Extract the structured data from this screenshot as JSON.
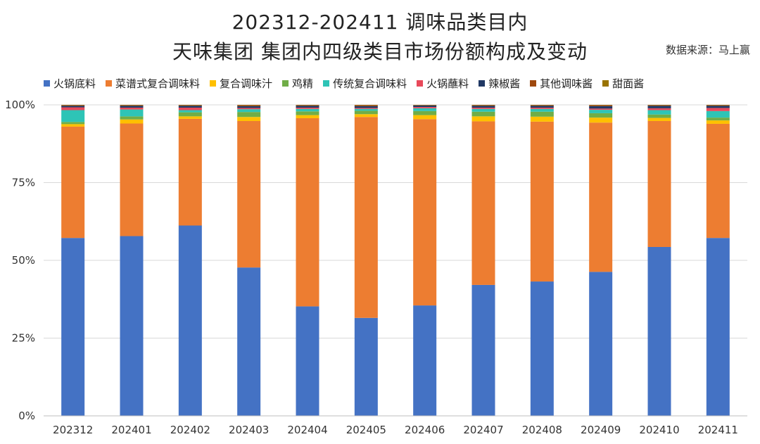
{
  "header": {
    "title_line1": "202312-202411 调味品类目内",
    "title_line2": "天味集团 集团内四级类目市场份额构成及变动",
    "source": "数据来源：马上赢"
  },
  "chart_data": {
    "type": "bar",
    "stacked": true,
    "percent": true,
    "title": "202312-202411 调味品类目内 天味集团 集团内四级类目市场份额构成及变动",
    "xlabel": "",
    "ylabel": "",
    "ylim": [
      0,
      100
    ],
    "yticks": [
      "0%",
      "25%",
      "50%",
      "75%",
      "100%"
    ],
    "legend_position": "top",
    "grid": true,
    "categories": [
      "202312",
      "202401",
      "202402",
      "202403",
      "202404",
      "202405",
      "202406",
      "202407",
      "202408",
      "202409",
      "202410",
      "202411"
    ],
    "series": [
      {
        "name": "火锅底料",
        "color": "#4472C4",
        "values": [
          57.2,
          57.8,
          61.2,
          47.7,
          35.2,
          31.5,
          35.5,
          42.1,
          43.2,
          46.3,
          54.3,
          57.2
        ]
      },
      {
        "name": "菜谱式复合调味料",
        "color": "#ED7D31",
        "values": [
          35.8,
          36.2,
          34.3,
          47.1,
          60.5,
          64.6,
          59.9,
          52.6,
          51.4,
          48.0,
          40.5,
          36.7
        ]
      },
      {
        "name": "复合调味汁",
        "color": "#FFC000",
        "values": [
          0.8,
          1.3,
          0.8,
          1.3,
          1.0,
          0.9,
          1.3,
          1.6,
          1.6,
          1.6,
          1.0,
          1.1
        ]
      },
      {
        "name": "鸡精",
        "color": "#70AD47",
        "values": [
          0.7,
          1.0,
          1.3,
          1.6,
          1.2,
          1.1,
          1.3,
          1.5,
          1.6,
          1.4,
          1.1,
          0.9
        ]
      },
      {
        "name": "传统复合调味料",
        "color": "#2EC4B6",
        "values": [
          3.8,
          2.2,
          0.7,
          0.9,
          0.8,
          0.6,
          0.9,
          0.9,
          0.9,
          1.1,
          1.4,
          2.1
        ]
      },
      {
        "name": "火锅蘸料",
        "color": "#E8495A",
        "values": [
          0.9,
          0.6,
          0.8,
          0.4,
          0.4,
          0.3,
          0.4,
          0.4,
          0.4,
          0.4,
          0.6,
          1.0
        ]
      },
      {
        "name": "辣椒酱",
        "color": "#203864",
        "values": [
          0.5,
          0.6,
          0.6,
          0.6,
          0.6,
          0.6,
          0.5,
          0.6,
          0.6,
          0.8,
          0.8,
          0.7
        ]
      },
      {
        "name": "其他调味酱",
        "color": "#9E480E",
        "values": [
          0.2,
          0.2,
          0.2,
          0.3,
          0.2,
          0.3,
          0.1,
          0.2,
          0.2,
          0.3,
          0.2,
          0.2
        ]
      },
      {
        "name": "甜面酱",
        "color": "#997300",
        "values": [
          0.1,
          0.1,
          0.1,
          0.1,
          0.1,
          0.1,
          0.1,
          0.1,
          0.1,
          0.1,
          0.1,
          0.1
        ]
      }
    ]
  }
}
